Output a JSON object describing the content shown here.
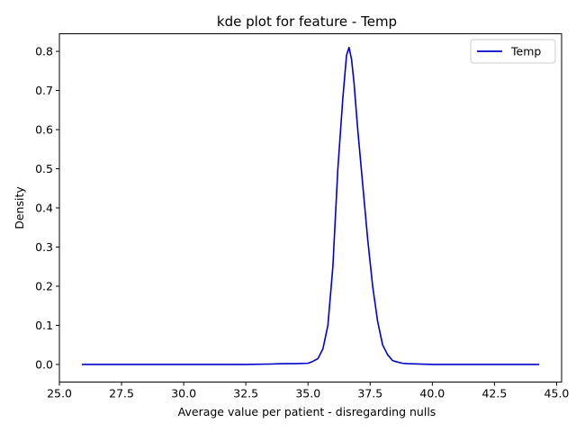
{
  "chart_data": {
    "type": "line",
    "title": "kde plot for feature -  Temp",
    "xlabel": "Average value per patient - disregarding nulls",
    "ylabel": "Density",
    "xlim": [
      25.0,
      45.2
    ],
    "ylim": [
      -0.045,
      0.845
    ],
    "xticks": [
      25.0,
      27.5,
      30.0,
      32.5,
      35.0,
      37.5,
      40.0,
      42.5,
      45.0
    ],
    "xtick_labels": [
      "25.0",
      "27.5",
      "30.0",
      "32.5",
      "35.0",
      "37.5",
      "40.0",
      "42.5",
      "45.0"
    ],
    "yticks": [
      0.0,
      0.1,
      0.2,
      0.3,
      0.4,
      0.5,
      0.6,
      0.7,
      0.8
    ],
    "ytick_labels": [
      "0.0",
      "0.1",
      "0.2",
      "0.3",
      "0.4",
      "0.5",
      "0.6",
      "0.7",
      "0.8"
    ],
    "grid": false,
    "legend_position": "top-right",
    "series": [
      {
        "name": "Temp",
        "color": "#0000cc",
        "points": [
          [
            25.9,
            0.0
          ],
          [
            30.0,
            0.0
          ],
          [
            32.5,
            0.0
          ],
          [
            33.5,
            0.001
          ],
          [
            34.0,
            0.002
          ],
          [
            34.5,
            0.002
          ],
          [
            35.0,
            0.003
          ],
          [
            35.2,
            0.008
          ],
          [
            35.4,
            0.015
          ],
          [
            35.6,
            0.04
          ],
          [
            35.8,
            0.1
          ],
          [
            36.0,
            0.25
          ],
          [
            36.2,
            0.5
          ],
          [
            36.4,
            0.68
          ],
          [
            36.55,
            0.79
          ],
          [
            36.65,
            0.81
          ],
          [
            36.75,
            0.78
          ],
          [
            36.85,
            0.72
          ],
          [
            37.0,
            0.6
          ],
          [
            37.2,
            0.46
          ],
          [
            37.4,
            0.32
          ],
          [
            37.6,
            0.2
          ],
          [
            37.8,
            0.11
          ],
          [
            38.0,
            0.05
          ],
          [
            38.2,
            0.025
          ],
          [
            38.4,
            0.01
          ],
          [
            38.6,
            0.006
          ],
          [
            38.8,
            0.003
          ],
          [
            39.0,
            0.002
          ],
          [
            40.0,
            0.0
          ],
          [
            42.5,
            0.0
          ],
          [
            44.3,
            0.0
          ]
        ]
      }
    ]
  }
}
